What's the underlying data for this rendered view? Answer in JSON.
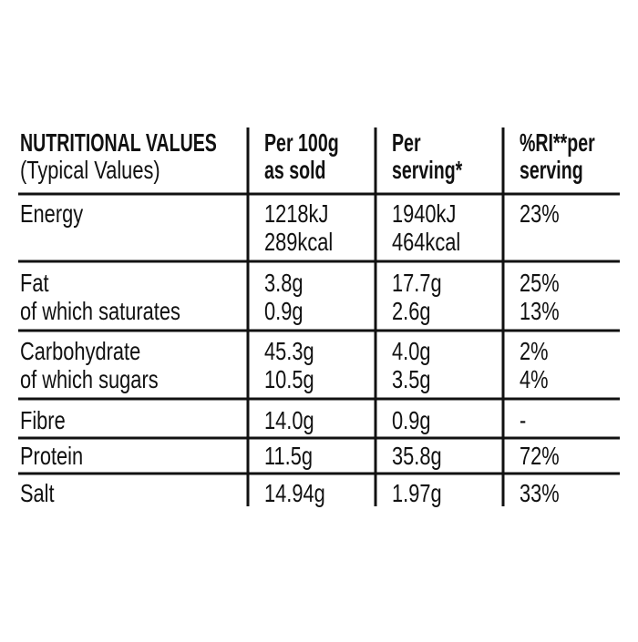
{
  "table": {
    "header": [
      [
        "NUTRITIONAL VALUES",
        "(Typical Values)"
      ],
      [
        "Per 100g",
        "as sold"
      ],
      [
        "Per",
        "serving*"
      ],
      [
        "%RI**per",
        "serving"
      ]
    ],
    "rows": [
      [
        [
          "Energy"
        ],
        [
          "1218kJ",
          "289kcal"
        ],
        [
          "1940kJ",
          "464kcal"
        ],
        [
          "23%"
        ]
      ],
      [
        [
          "Fat",
          "of which saturates"
        ],
        [
          "3.8g",
          "0.9g"
        ],
        [
          "17.7g",
          "2.6g"
        ],
        [
          "25%",
          "13%"
        ]
      ],
      [
        [
          "Carbohydrate",
          "of which sugars"
        ],
        [
          "45.3g",
          "10.5g"
        ],
        [
          "4.0g",
          "3.5g"
        ],
        [
          "2%",
          "4%"
        ]
      ],
      [
        [
          "Fibre"
        ],
        [
          "14.0g"
        ],
        [
          "0.9g"
        ],
        [
          "-"
        ]
      ],
      [
        [
          "Protein"
        ],
        [
          "11.5g"
        ],
        [
          "35.8g"
        ],
        [
          "72%"
        ]
      ],
      [
        [
          "Salt"
        ],
        [
          "14.94g"
        ],
        [
          "1.97g"
        ],
        [
          "33%"
        ]
      ]
    ]
  }
}
